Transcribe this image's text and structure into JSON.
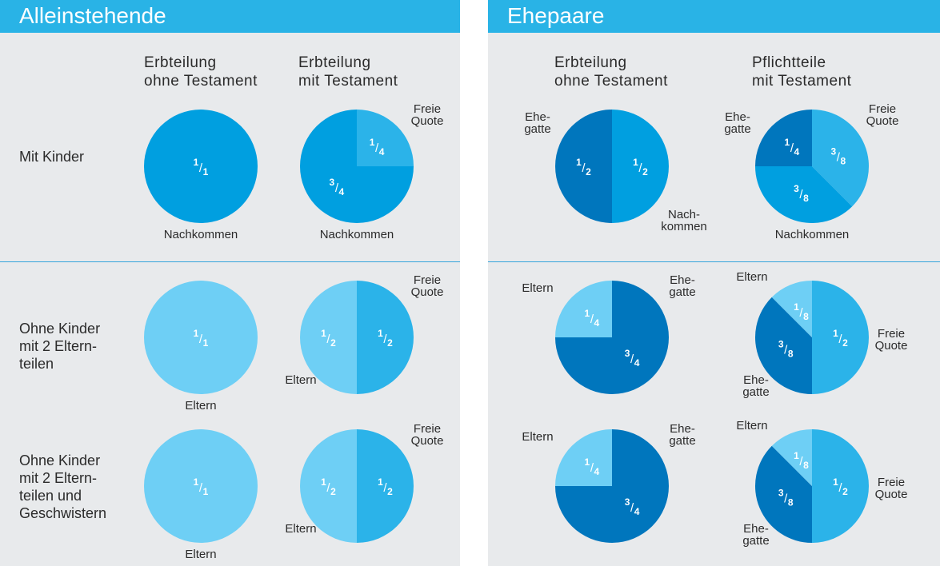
{
  "left": {
    "title": "Alleinstehende",
    "col_heads": [
      {
        "line1": "Erbteilung",
        "line2": "ohne Testament"
      },
      {
        "line1": "Erbteilung",
        "line2": "mit Testament"
      }
    ],
    "rows": [
      {
        "lines": [
          "Mit Kinder"
        ]
      },
      {
        "lines": [
          "Ohne Kinder",
          "mit 2 Eltern-",
          "teilen"
        ]
      },
      {
        "lines": [
          "Ohne Kinder",
          "mit 2 Eltern-",
          "teilen und",
          "Geschwistern"
        ]
      }
    ]
  },
  "right": {
    "title": "Ehepaare",
    "col_heads": [
      {
        "line1": "Erbteilung",
        "line2": "ohne Testament"
      },
      {
        "line1": "Pflichtteile",
        "line2": "mit Testament"
      }
    ]
  },
  "colors": {
    "dark": "#0076bd",
    "medium": "#009fe0",
    "bright": "#2bb3e9",
    "light": "#6ecff5",
    "title_bar": "#29b3e6"
  },
  "chart_data": [
    {
      "type": "pie",
      "name": "alleinstehend-mit-kinder-ohne-testament",
      "slices": [
        {
          "num": "1",
          "den": "1",
          "value": 1,
          "color": "medium"
        }
      ],
      "labels": [
        {
          "lines": [
            "Nachkommen"
          ],
          "pos": "bottom"
        }
      ]
    },
    {
      "type": "pie",
      "name": "alleinstehend-mit-kinder-mit-testament",
      "slices": [
        {
          "num": "1",
          "den": "4",
          "value": 0.25,
          "color": "bright"
        },
        {
          "num": "3",
          "den": "4",
          "value": 0.75,
          "color": "medium"
        }
      ],
      "labels": [
        {
          "lines": [
            "Freie",
            "Quote"
          ],
          "pos": "top-right"
        },
        {
          "lines": [
            "Nachkommen"
          ],
          "pos": "bottom"
        }
      ]
    },
    {
      "type": "pie",
      "name": "ehepaar-mit-kinder-ohne-testament",
      "slices": [
        {
          "num": "1",
          "den": "2",
          "value": 0.5,
          "color": "medium"
        },
        {
          "num": "1",
          "den": "2",
          "value": 0.5,
          "color": "dark"
        }
      ],
      "labels": [
        {
          "lines": [
            "Ehe-",
            "gatte"
          ],
          "pos": "top-left"
        },
        {
          "lines": [
            "Nach-",
            "kommen"
          ],
          "pos": "bottom-right"
        }
      ]
    },
    {
      "type": "pie",
      "name": "ehepaar-mit-kinder-mit-testament",
      "slices": [
        {
          "num": "3",
          "den": "8",
          "value": 0.375,
          "color": "bright"
        },
        {
          "num": "3",
          "den": "8",
          "value": 0.375,
          "color": "medium"
        },
        {
          "num": "1",
          "den": "4",
          "value": 0.25,
          "color": "dark"
        }
      ],
      "labels": [
        {
          "lines": [
            "Freie",
            "Quote"
          ],
          "pos": "top-right"
        },
        {
          "lines": [
            "Ehe-",
            "gatte"
          ],
          "pos": "top-left"
        },
        {
          "lines": [
            "Nachkommen"
          ],
          "pos": "bottom"
        }
      ]
    },
    {
      "type": "pie",
      "name": "alleinstehend-2-elternteile-ohne-testament",
      "slices": [
        {
          "num": "1",
          "den": "1",
          "value": 1,
          "color": "light"
        }
      ],
      "labels": [
        {
          "lines": [
            "Eltern"
          ],
          "pos": "bottom"
        }
      ]
    },
    {
      "type": "pie",
      "name": "alleinstehend-2-elternteile-mit-testament",
      "slices": [
        {
          "num": "1",
          "den": "2",
          "value": 0.5,
          "color": "bright"
        },
        {
          "num": "1",
          "den": "2",
          "value": 0.5,
          "color": "light"
        }
      ],
      "labels": [
        {
          "lines": [
            "Freie",
            "Quote"
          ],
          "pos": "top-right"
        },
        {
          "lines": [
            "Eltern"
          ],
          "pos": "bottom-left"
        }
      ]
    },
    {
      "type": "pie",
      "name": "ehepaar-eltern-ohne-testament",
      "slices": [
        {
          "num": "3",
          "den": "4",
          "value": 0.75,
          "color": "dark"
        },
        {
          "num": "1",
          "den": "4",
          "value": 0.25,
          "color": "light"
        }
      ],
      "labels": [
        {
          "lines": [
            "Eltern"
          ],
          "pos": "top-left"
        },
        {
          "lines": [
            "Ehe-",
            "gatte"
          ],
          "pos": "top-right"
        }
      ]
    },
    {
      "type": "pie",
      "name": "ehepaar-eltern-mit-testament",
      "slices": [
        {
          "num": "1",
          "den": "2",
          "value": 0.5,
          "color": "bright"
        },
        {
          "num": "3",
          "den": "8",
          "value": 0.375,
          "color": "dark"
        },
        {
          "num": "1",
          "den": "8",
          "value": 0.125,
          "color": "light"
        }
      ],
      "labels": [
        {
          "lines": [
            "Eltern"
          ],
          "pos": "top"
        },
        {
          "lines": [
            "Freie",
            "Quote"
          ],
          "pos": "right"
        },
        {
          "lines": [
            "Ehe-",
            "gatte"
          ],
          "pos": "bottom-left"
        }
      ]
    },
    {
      "type": "pie",
      "name": "alleinstehend-geschwister-ohne-testament",
      "slices": [
        {
          "num": "1",
          "den": "1",
          "value": 1,
          "color": "light"
        }
      ],
      "labels": [
        {
          "lines": [
            "Eltern"
          ],
          "pos": "bottom"
        }
      ]
    },
    {
      "type": "pie",
      "name": "alleinstehend-geschwister-mit-testament",
      "slices": [
        {
          "num": "1",
          "den": "2",
          "value": 0.5,
          "color": "bright"
        },
        {
          "num": "1",
          "den": "2",
          "value": 0.5,
          "color": "light"
        }
      ],
      "labels": [
        {
          "lines": [
            "Freie",
            "Quote"
          ],
          "pos": "top-right"
        },
        {
          "lines": [
            "Eltern"
          ],
          "pos": "bottom-left"
        }
      ]
    },
    {
      "type": "pie",
      "name": "ehepaar-geschwister-ohne-testament",
      "slices": [
        {
          "num": "3",
          "den": "4",
          "value": 0.75,
          "color": "dark"
        },
        {
          "num": "1",
          "den": "4",
          "value": 0.25,
          "color": "light"
        }
      ],
      "labels": [
        {
          "lines": [
            "Eltern"
          ],
          "pos": "top-left"
        },
        {
          "lines": [
            "Ehe-",
            "gatte"
          ],
          "pos": "top-right"
        }
      ]
    },
    {
      "type": "pie",
      "name": "ehepaar-geschwister-mit-testament",
      "slices": [
        {
          "num": "1",
          "den": "2",
          "value": 0.5,
          "color": "bright"
        },
        {
          "num": "3",
          "den": "8",
          "value": 0.375,
          "color": "dark"
        },
        {
          "num": "1",
          "den": "8",
          "value": 0.125,
          "color": "light"
        }
      ],
      "labels": [
        {
          "lines": [
            "Eltern"
          ],
          "pos": "top"
        },
        {
          "lines": [
            "Freie",
            "Quote"
          ],
          "pos": "right"
        },
        {
          "lines": [
            "Ehe-",
            "gatte"
          ],
          "pos": "bottom-left"
        }
      ]
    }
  ]
}
